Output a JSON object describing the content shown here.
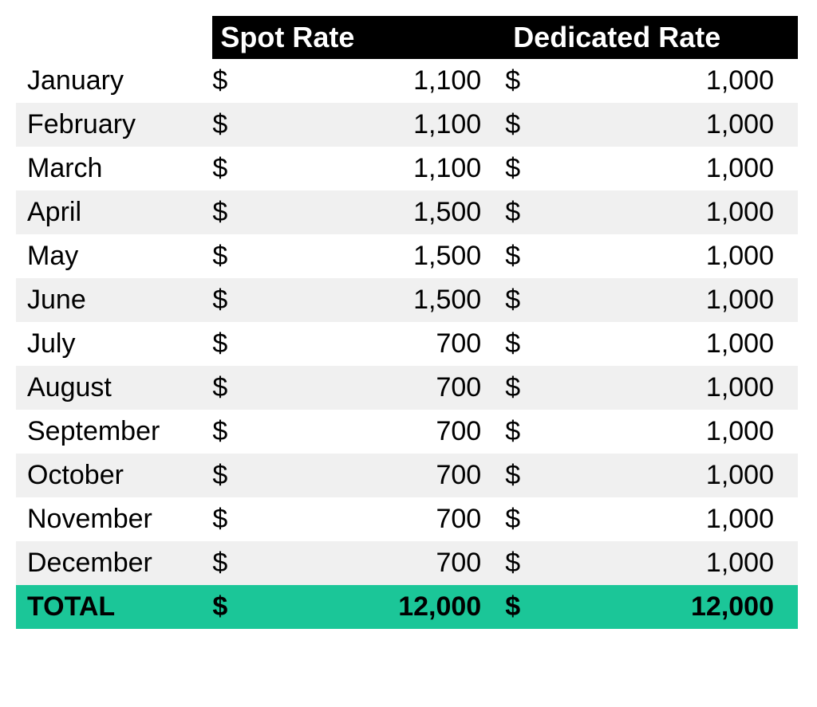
{
  "table": {
    "type": "table",
    "background_color": "#ffffff",
    "header_bg_color": "#000000",
    "header_text_color": "#ffffff",
    "row_alt_bg_color": "#f0f0f0",
    "row_bg_color": "#ffffff",
    "total_bg_color": "#1bc698",
    "total_text_color": "#000000",
    "font_family": "Arial",
    "header_fontsize": 36,
    "body_fontsize": 34,
    "currency_symbol": "$",
    "columns": {
      "month": "",
      "spot": "Spot Rate",
      "dedicated": "Dedicated Rate"
    },
    "rows": [
      {
        "month": "January",
        "spot": "1,100",
        "dedicated": "1,000"
      },
      {
        "month": "February",
        "spot": "1,100",
        "dedicated": "1,000"
      },
      {
        "month": "March",
        "spot": "1,100",
        "dedicated": "1,000"
      },
      {
        "month": "April",
        "spot": "1,500",
        "dedicated": "1,000"
      },
      {
        "month": "May",
        "spot": "1,500",
        "dedicated": "1,000"
      },
      {
        "month": "June",
        "spot": "1,500",
        "dedicated": "1,000"
      },
      {
        "month": "July",
        "spot": "700",
        "dedicated": "1,000"
      },
      {
        "month": "August",
        "spot": "700",
        "dedicated": "1,000"
      },
      {
        "month": "September",
        "spot": "700",
        "dedicated": "1,000"
      },
      {
        "month": "October",
        "spot": "700",
        "dedicated": "1,000"
      },
      {
        "month": "November",
        "spot": "700",
        "dedicated": "1,000"
      },
      {
        "month": "December",
        "spot": "700",
        "dedicated": "1,000"
      }
    ],
    "total": {
      "label": "TOTAL",
      "spot": "12,000",
      "dedicated": "12,000"
    }
  }
}
